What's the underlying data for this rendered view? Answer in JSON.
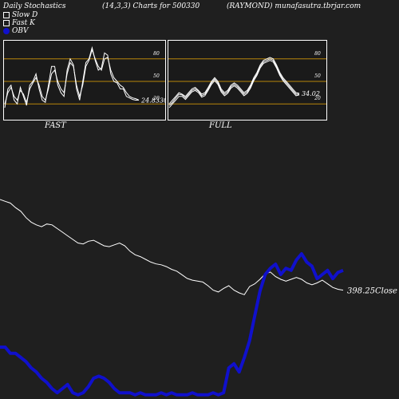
{
  "header": {
    "left": "Daily Stochastics",
    "mid": "(14,3,3) Charts for 500330",
    "right": "(RAYMOND) munafasutra.tbrjar.com"
  },
  "legend": [
    {
      "label": "Slow  D",
      "color": "#ffffff"
    },
    {
      "label": "Fast K",
      "color": "#ffffff"
    },
    {
      "label": "OBV",
      "color": "#1010cc"
    }
  ],
  "colors": {
    "background": "#1f1f1f",
    "panel_bg": "#1a1a1a",
    "level_line": "#b8860b",
    "price_line": "#ffffff",
    "obv_line": "#1010cc"
  },
  "chart_data": [
    {
      "type": "line",
      "panel_label": "FAST",
      "ylim": [
        0,
        100
      ],
      "levels": [
        20,
        50,
        80
      ],
      "level_labels": [
        "80",
        "50",
        "20"
      ],
      "last_value_label": "24.8330",
      "series": [
        {
          "values": [
            20,
            35,
            42,
            30,
            25,
            38,
            33,
            22,
            40,
            48,
            55,
            45,
            30,
            25,
            40,
            60,
            65,
            50,
            40,
            35,
            60,
            75,
            70,
            45,
            30,
            45,
            70,
            78,
            92,
            80,
            70,
            65,
            80,
            82,
            65,
            55,
            50,
            45,
            42,
            35,
            30,
            28,
            27,
            25
          ]
        },
        {
          "values": [
            15,
            40,
            45,
            25,
            20,
            42,
            30,
            18,
            45,
            50,
            60,
            40,
            25,
            22,
            45,
            70,
            70,
            45,
            35,
            30,
            65,
            80,
            72,
            40,
            25,
            50,
            75,
            80,
            95,
            78,
            65,
            68,
            88,
            85,
            60,
            50,
            48,
            40,
            40,
            30,
            28,
            26,
            25,
            25
          ]
        }
      ]
    },
    {
      "type": "line",
      "panel_label": "FULL",
      "ylim": [
        0,
        100
      ],
      "levels": [
        20,
        50,
        80
      ],
      "level_labels": [
        "80",
        "50",
        "20"
      ],
      "last_value_label": "34.02",
      "series": [
        {
          "values": [
            20,
            25,
            30,
            35,
            33,
            30,
            35,
            40,
            42,
            38,
            33,
            35,
            42,
            50,
            55,
            50,
            40,
            35,
            38,
            45,
            48,
            45,
            40,
            35,
            38,
            45,
            55,
            62,
            72,
            78,
            80,
            82,
            80,
            72,
            62,
            55,
            50,
            45,
            40,
            35,
            34
          ]
        },
        {
          "values": [
            18,
            22,
            28,
            33,
            32,
            28,
            33,
            38,
            40,
            37,
            31,
            33,
            40,
            48,
            53,
            48,
            38,
            33,
            36,
            43,
            46,
            43,
            38,
            33,
            36,
            43,
            53,
            60,
            70,
            76,
            78,
            80,
            78,
            70,
            60,
            53,
            48,
            43,
            38,
            33,
            33
          ]
        },
        {
          "values": [
            15,
            20,
            25,
            30,
            30,
            26,
            31,
            36,
            38,
            35,
            29,
            31,
            38,
            46,
            51,
            46,
            36,
            31,
            34,
            41,
            44,
            41,
            36,
            31,
            34,
            41,
            51,
            58,
            68,
            74,
            76,
            78,
            76,
            68,
            58,
            51,
            46,
            41,
            36,
            31,
            32
          ]
        }
      ]
    },
    {
      "type": "line",
      "last_value_label": "398.25Close",
      "series": [
        {
          "name": "Close",
          "values": [
            100,
            98,
            96,
            91,
            87,
            80,
            75,
            72,
            70,
            73,
            72,
            68,
            64,
            60,
            56,
            52,
            51,
            54,
            55,
            52,
            49,
            48,
            50,
            52,
            49,
            43,
            39,
            37,
            34,
            31,
            29,
            28,
            26,
            23,
            21,
            17,
            13,
            11,
            10,
            9,
            5,
            0,
            -2,
            2,
            5,
            0,
            -3,
            -5,
            4,
            7,
            12,
            18,
            20,
            15,
            12,
            10,
            12,
            14,
            12,
            8,
            6,
            8,
            11,
            7,
            3,
            1,
            0
          ]
        },
        {
          "name": "OBV",
          "values": [
            null,
            null,
            null,
            null,
            null,
            null,
            null,
            null,
            null,
            null,
            null,
            null,
            null,
            null,
            null,
            null,
            null,
            null,
            null,
            null,
            null,
            null,
            null,
            null,
            null,
            null,
            null,
            null,
            null,
            null,
            null,
            null,
            null,
            null,
            null,
            null,
            null,
            null,
            null,
            null,
            null,
            null,
            null,
            null,
            null,
            null,
            null,
            null,
            null,
            null,
            null,
            null,
            null,
            null,
            null,
            null,
            null,
            null,
            null,
            null,
            null,
            null,
            null,
            null,
            null,
            null,
            null
          ]
        }
      ]
    }
  ]
}
